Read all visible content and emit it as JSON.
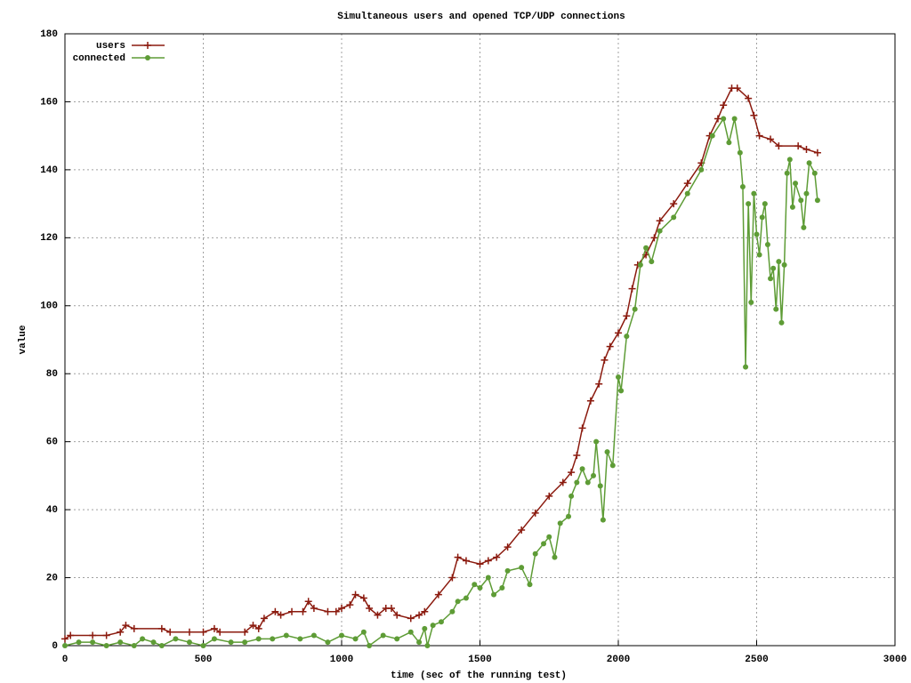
{
  "chart_data": {
    "type": "line",
    "title": "Simultaneous users and opened TCP/UDP connections",
    "x_label": "time (sec of the running test)",
    "y_label": "value",
    "xlim": [
      0,
      3000
    ],
    "xticks": [
      0,
      500,
      1000,
      1500,
      2000,
      2500,
      3000
    ],
    "ylim": [
      0,
      180
    ],
    "yticks": [
      0,
      20,
      40,
      60,
      80,
      100,
      120,
      140,
      160,
      180
    ],
    "grid": true,
    "legend": "top-left",
    "series": [
      {
        "name": "users",
        "color": "#8b1a0e",
        "marker": "plus",
        "x": [
          0,
          20,
          100,
          150,
          200,
          220,
          250,
          350,
          380,
          450,
          500,
          540,
          560,
          650,
          680,
          700,
          720,
          760,
          780,
          820,
          860,
          880,
          900,
          950,
          980,
          1000,
          1030,
          1050,
          1080,
          1100,
          1130,
          1160,
          1180,
          1200,
          1250,
          1280,
          1300,
          1350,
          1400,
          1420,
          1450,
          1500,
          1530,
          1560,
          1600,
          1650,
          1700,
          1750,
          1800,
          1830,
          1850,
          1870,
          1900,
          1930,
          1950,
          1970,
          2000,
          2030,
          2050,
          2070,
          2100,
          2130,
          2150,
          2200,
          2250,
          2300,
          2330,
          2360,
          2380,
          2410,
          2430,
          2470,
          2490,
          2510,
          2550,
          2580,
          2650,
          2680,
          2720
        ],
        "values": [
          2,
          3,
          3,
          3,
          4,
          6,
          5,
          5,
          4,
          4,
          4,
          5,
          4,
          4,
          6,
          5,
          8,
          10,
          9,
          10,
          10,
          13,
          11,
          10,
          10,
          11,
          12,
          15,
          14,
          11,
          9,
          11,
          11,
          9,
          8,
          9,
          10,
          15,
          20,
          26,
          25,
          24,
          25,
          26,
          29,
          34,
          39,
          44,
          48,
          51,
          56,
          64,
          72,
          77,
          84,
          88,
          92,
          97,
          105,
          112,
          115,
          120,
          125,
          130,
          136,
          142,
          150,
          155,
          159,
          164,
          164,
          161,
          156,
          150,
          149,
          147,
          147,
          146,
          145
        ]
      },
      {
        "name": "connected",
        "color": "#5e9c36",
        "marker": "circle",
        "x": [
          0,
          50,
          100,
          150,
          200,
          250,
          280,
          320,
          350,
          400,
          450,
          500,
          540,
          600,
          650,
          700,
          750,
          800,
          850,
          900,
          950,
          1000,
          1050,
          1080,
          1100,
          1150,
          1200,
          1250,
          1280,
          1300,
          1310,
          1330,
          1360,
          1400,
          1420,
          1450,
          1480,
          1500,
          1530,
          1550,
          1580,
          1600,
          1650,
          1680,
          1700,
          1730,
          1750,
          1770,
          1790,
          1820,
          1830,
          1850,
          1870,
          1890,
          1910,
          1920,
          1935,
          1945,
          1960,
          1980,
          2000,
          2010,
          2030,
          2060,
          2080,
          2100,
          2120,
          2150,
          2200,
          2250,
          2300,
          2340,
          2380,
          2400,
          2420,
          2440,
          2450,
          2460,
          2470,
          2480,
          2490,
          2500,
          2510,
          2520,
          2530,
          2540,
          2550,
          2560,
          2570,
          2580,
          2590,
          2600,
          2610,
          2620,
          2630,
          2640,
          2660,
          2670,
          2680,
          2690,
          2710,
          2720
        ],
        "values": [
          0,
          1,
          1,
          0,
          1,
          0,
          2,
          1,
          0,
          2,
          1,
          0,
          2,
          1,
          1,
          2,
          2,
          3,
          2,
          3,
          1,
          3,
          2,
          4,
          0,
          3,
          2,
          4,
          1,
          5,
          0,
          6,
          7,
          10,
          13,
          14,
          18,
          17,
          20,
          15,
          17,
          22,
          23,
          18,
          27,
          30,
          32,
          26,
          36,
          38,
          44,
          48,
          52,
          48,
          50,
          60,
          47,
          37,
          57,
          53,
          79,
          75,
          91,
          99,
          112,
          117,
          113,
          122,
          126,
          133,
          140,
          150,
          155,
          148,
          155,
          145,
          135,
          82,
          130,
          101,
          133,
          121,
          115,
          126,
          130,
          118,
          108,
          111,
          99,
          113,
          95,
          112,
          139,
          143,
          129,
          136,
          131,
          123,
          133,
          142,
          139,
          131
        ]
      }
    ]
  }
}
